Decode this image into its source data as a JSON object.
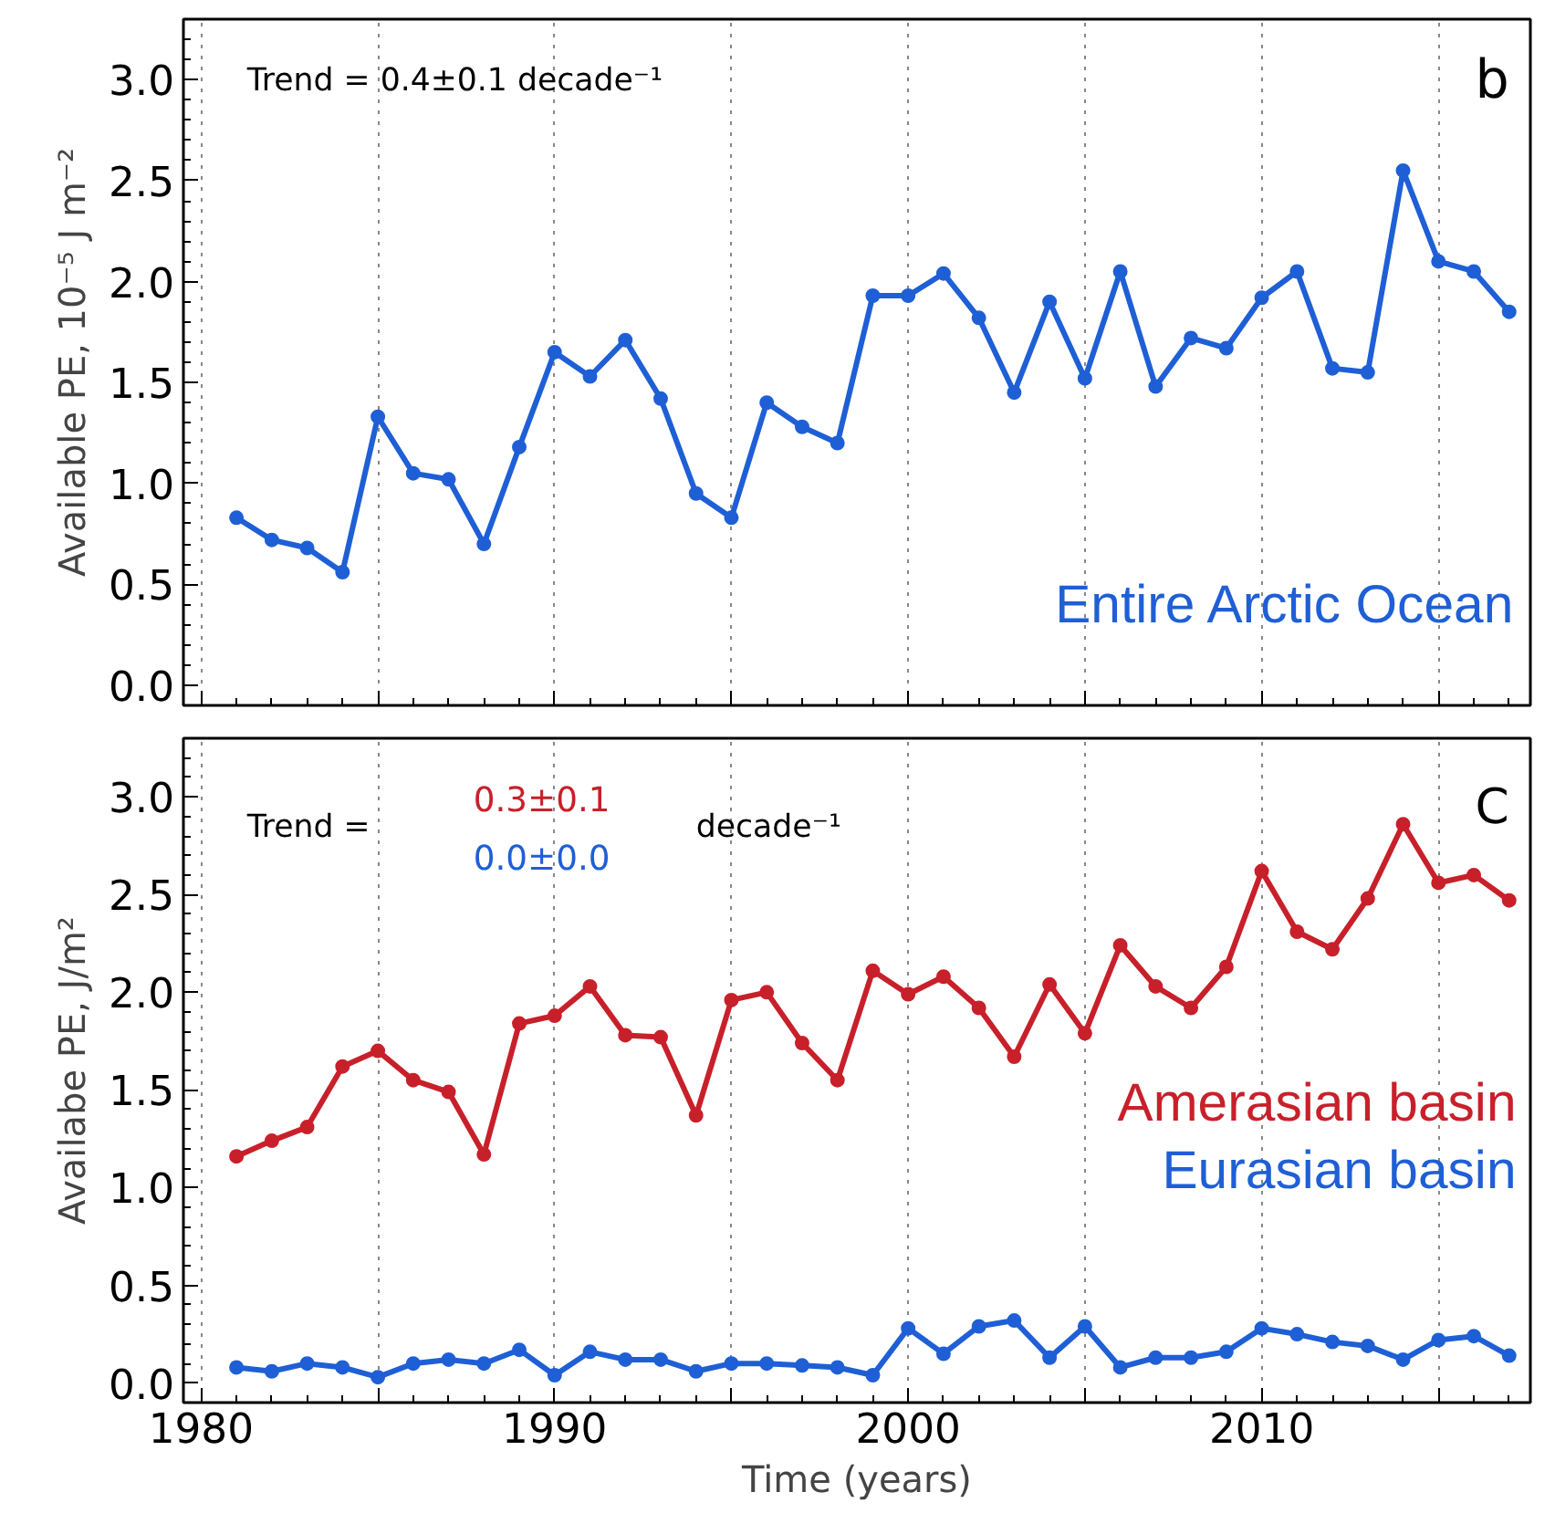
{
  "chart_data": [
    {
      "type": "line",
      "ylabel": "Available PE, 10⁻⁵ J m⁻²",
      "x": [
        1981,
        1982,
        1983,
        1984,
        1985,
        1986,
        1987,
        1988,
        1989,
        1990,
        1991,
        1992,
        1993,
        1994,
        1995,
        1996,
        1997,
        1998,
        1999,
        2000,
        2001,
        2002,
        2003,
        2004,
        2005,
        2006,
        2007,
        2008,
        2009,
        2010,
        2011,
        2012,
        2013,
        2014,
        2015,
        2016,
        2017
      ],
      "series": [
        {
          "name": "Entire Arctic Ocean",
          "color": "#1f5fd6",
          "values": [
            0.83,
            0.72,
            0.68,
            0.56,
            1.33,
            1.05,
            1.02,
            0.7,
            1.18,
            1.65,
            1.53,
            1.71,
            1.42,
            0.95,
            0.83,
            1.4,
            1.28,
            1.2,
            1.93,
            1.93,
            2.04,
            1.82,
            1.45,
            1.9,
            1.52,
            2.05,
            1.48,
            1.72,
            1.67,
            1.92,
            2.05,
            1.57,
            1.55,
            2.55,
            2.1,
            2.05,
            1.85
          ]
        }
      ],
      "annotations": [
        "Trend = 0.4±0.1 decade⁻¹",
        "b"
      ],
      "xlim": [
        1979.5,
        2017.6
      ],
      "ylim": [
        -0.1,
        3.3
      ],
      "xticks": [
        1980,
        {
          "value": 1985,
          "label": null
        },
        1990,
        {
          "value": 1995,
          "label": null
        },
        2000,
        {
          "value": 2005,
          "label": null
        },
        2010,
        {
          "value": 2015,
          "label": null
        }
      ],
      "yticks": [
        {
          "value": 0,
          "label": "0.0"
        },
        0.5,
        {
          "value": 1,
          "label": "1.0"
        },
        1.5,
        {
          "value": 2,
          "label": "2.0"
        },
        2.5,
        {
          "value": 3,
          "label": "3.0"
        }
      ],
      "grid": "x",
      "marker": "circle",
      "tick_labels": "y"
    },
    {
      "type": "line",
      "xlabel": "Time (years)",
      "ylabel": "Availabe PE, J/m²",
      "x": [
        1981,
        1982,
        1983,
        1984,
        1985,
        1986,
        1987,
        1988,
        1989,
        1990,
        1991,
        1992,
        1993,
        1994,
        1995,
        1996,
        1997,
        1998,
        1999,
        2000,
        2001,
        2002,
        2003,
        2004,
        2005,
        2006,
        2007,
        2008,
        2009,
        2010,
        2011,
        2012,
        2013,
        2014,
        2015,
        2016,
        2017
      ],
      "series": [
        {
          "name": "Amerasian basin",
          "color": "#c8202a",
          "values": [
            1.16,
            1.24,
            1.31,
            1.62,
            1.7,
            1.55,
            1.49,
            1.17,
            1.84,
            1.88,
            2.03,
            1.78,
            1.77,
            1.37,
            1.96,
            2.0,
            1.74,
            1.55,
            2.11,
            1.99,
            2.08,
            1.92,
            1.67,
            2.04,
            1.79,
            2.24,
            2.03,
            1.92,
            2.13,
            2.62,
            2.31,
            2.22,
            2.48,
            2.86,
            2.56,
            2.6,
            2.47
          ]
        },
        {
          "name": "Eurasian basin",
          "color": "#1f5fd6",
          "values": [
            0.08,
            0.06,
            0.1,
            0.08,
            0.03,
            0.1,
            0.12,
            0.1,
            0.17,
            0.04,
            0.16,
            0.12,
            0.12,
            0.06,
            0.1,
            0.1,
            0.09,
            0.08,
            0.04,
            0.28,
            0.15,
            0.29,
            0.32,
            0.13,
            0.29,
            0.08,
            0.13,
            0.13,
            0.16,
            0.28,
            0.25,
            0.21,
            0.19,
            0.12,
            0.22,
            0.24,
            0.14
          ]
        }
      ],
      "annotations": [
        "Trend =",
        "0.3±0.1",
        "0.0±0.0",
        "decade⁻¹",
        "C"
      ],
      "xlim": [
        1979.5,
        2017.6
      ],
      "ylim": [
        -0.1,
        3.3
      ],
      "xticks": [
        1980,
        {
          "value": 1985,
          "label": null
        },
        1990,
        {
          "value": 1995,
          "label": null
        },
        2000,
        {
          "value": 2005,
          "label": null
        },
        2010,
        {
          "value": 2015,
          "label": null
        }
      ],
      "yticks": [
        {
          "value": 0,
          "label": "0.0"
        },
        0.5,
        {
          "value": 1,
          "label": "1.0"
        },
        1.5,
        {
          "value": 2,
          "label": "2.0"
        },
        2.5,
        {
          "value": 3,
          "label": "3.0"
        }
      ],
      "grid": "x",
      "marker": "circle"
    }
  ]
}
